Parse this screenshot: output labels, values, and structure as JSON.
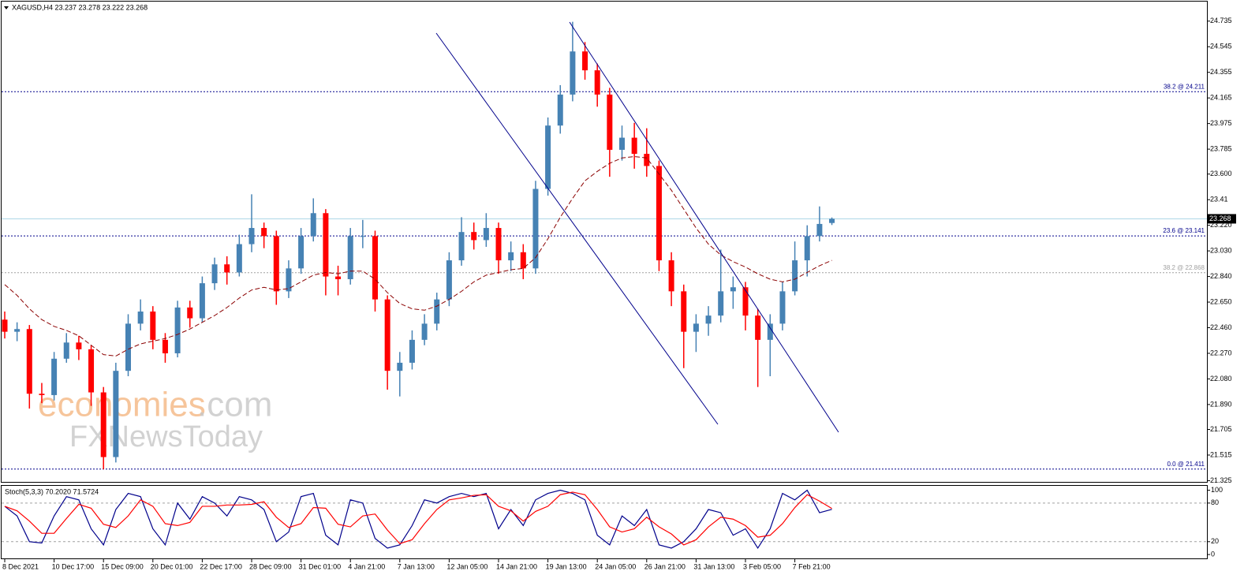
{
  "chart_data": [
    {
      "type": "candlestick",
      "title": "XAGUSD,H4  23.237 23.278 23.222 23.268",
      "up_color": "#4682b4",
      "down_color": "#ff0000",
      "open": [
        22.52,
        22.43,
        22.45,
        21.97,
        21.96,
        22.23,
        22.35,
        22.3,
        21.98,
        21.5,
        22.14,
        22.49,
        22.58,
        22.37,
        22.27,
        22.61,
        22.53,
        22.79,
        22.93,
        22.87,
        23.08,
        23.2,
        23.14,
        22.73,
        22.9,
        23.14,
        23.31,
        22.84,
        22.82,
        23.14,
        23.14,
        22.67,
        22.14,
        22.2,
        22.37,
        22.49,
        22.67,
        22.96,
        23.17,
        23.11,
        23.2,
        22.96,
        23.02,
        22.9,
        23.49,
        23.96,
        24.19,
        24.51,
        24.37,
        24.19,
        23.78,
        23.87,
        23.75,
        23.66,
        22.96,
        22.73,
        22.43,
        22.49,
        22.55,
        22.73,
        22.76,
        22.55,
        22.37,
        22.49,
        22.73,
        22.96,
        23.14,
        23.237
      ],
      "high": [
        22.58,
        22.5,
        22.48,
        22.05,
        22.28,
        22.42,
        22.4,
        22.33,
        22.02,
        22.2,
        22.56,
        22.67,
        22.62,
        22.42,
        22.66,
        22.66,
        22.84,
        22.98,
        22.99,
        23.15,
        23.45,
        23.24,
        23.18,
        22.96,
        23.2,
        23.42,
        23.34,
        22.92,
        23.2,
        23.26,
        23.18,
        22.7,
        22.28,
        22.44,
        22.56,
        22.72,
        23.02,
        23.28,
        23.24,
        23.31,
        23.24,
        23.1,
        23.08,
        23.55,
        24.02,
        24.26,
        24.73,
        24.58,
        24.42,
        24.24,
        23.96,
        23.98,
        23.94,
        23.7,
        23.02,
        22.78,
        22.56,
        22.62,
        23.04,
        22.84,
        22.8,
        22.6,
        22.56,
        22.8,
        23.1,
        23.22,
        23.36,
        23.278
      ],
      "low": [
        22.38,
        22.36,
        21.86,
        21.9,
        21.92,
        22.2,
        22.22,
        21.88,
        21.41,
        21.46,
        22.1,
        22.44,
        22.3,
        22.2,
        22.24,
        22.46,
        22.5,
        22.74,
        22.78,
        22.84,
        23.02,
        23.05,
        22.63,
        22.68,
        22.86,
        23.1,
        22.7,
        22.7,
        22.78,
        23.05,
        22.58,
        22.0,
        21.95,
        22.15,
        22.33,
        22.44,
        22.62,
        22.92,
        23.04,
        23.06,
        22.86,
        22.88,
        22.82,
        22.86,
        23.44,
        23.9,
        24.14,
        24.3,
        24.1,
        23.58,
        23.7,
        23.64,
        23.58,
        22.88,
        22.62,
        22.16,
        22.28,
        22.4,
        22.5,
        22.6,
        22.44,
        22.02,
        22.1,
        22.44,
        22.7,
        22.84,
        23.1,
        23.222
      ],
      "close": [
        22.43,
        22.45,
        21.97,
        21.96,
        22.23,
        22.35,
        22.3,
        21.98,
        21.5,
        22.14,
        22.49,
        22.58,
        22.37,
        22.27,
        22.61,
        22.53,
        22.79,
        22.93,
        22.87,
        23.08,
        23.2,
        23.14,
        22.73,
        22.9,
        23.14,
        23.31,
        22.84,
        22.82,
        23.14,
        23.14,
        22.67,
        22.14,
        22.2,
        22.37,
        22.49,
        22.67,
        22.96,
        23.17,
        23.11,
        23.2,
        22.96,
        23.02,
        22.9,
        23.49,
        23.96,
        24.19,
        24.51,
        24.37,
        24.19,
        23.78,
        23.87,
        23.75,
        23.66,
        22.96,
        22.73,
        22.43,
        22.49,
        22.55,
        22.73,
        22.76,
        22.55,
        22.37,
        22.49,
        22.73,
        22.96,
        23.14,
        23.23,
        23.268
      ],
      "moving_average": {
        "color": "#8b0000",
        "values": [
          22.78,
          22.7,
          22.6,
          22.52,
          22.47,
          22.44,
          22.4,
          22.33,
          22.26,
          22.25,
          22.3,
          22.34,
          22.36,
          22.38,
          22.41,
          22.45,
          22.5,
          22.55,
          22.61,
          22.68,
          22.74,
          22.76,
          22.74,
          22.75,
          22.8,
          22.85,
          22.87,
          22.86,
          22.88,
          22.88,
          22.82,
          22.72,
          22.64,
          22.6,
          22.59,
          22.62,
          22.67,
          22.73,
          22.8,
          22.85,
          22.87,
          22.89,
          22.9,
          22.98,
          23.12,
          23.28,
          23.42,
          23.55,
          23.62,
          23.68,
          23.72,
          23.73,
          23.72,
          23.6,
          23.48,
          23.34,
          23.2,
          23.08,
          23.0,
          22.95,
          22.91,
          22.86,
          22.82,
          22.8,
          22.82,
          22.87,
          22.92,
          22.96
        ]
      },
      "current_price": 23.268,
      "current_price_color": "#add8e6",
      "levels": [
        {
          "value": 24.211,
          "label": "38.2 @ 24.211",
          "color": "#00008b"
        },
        {
          "value": 23.141,
          "label": "23.6 @ 23.141",
          "color": "#00008b"
        },
        {
          "value": 22.868,
          "label": "38.2 @ 22.868",
          "color": "#a0a0a0"
        },
        {
          "value": 21.411,
          "label": "0.0 @ 21.411",
          "color": "#00008b"
        }
      ],
      "ylim": [
        21.31,
        24.88
      ],
      "yticks": [
        24.735,
        24.545,
        24.355,
        24.165,
        23.975,
        23.785,
        {
          "value": 23.6,
          "label": "23.600"
        },
        23.41,
        {
          "value": 23.22,
          "label": "23.220"
        },
        {
          "value": 23.03,
          "label": "23.030"
        },
        {
          "value": 22.84,
          "label": "22.840"
        },
        {
          "value": 22.65,
          "label": "22.650"
        },
        {
          "value": 22.46,
          "label": "22.460"
        },
        {
          "value": 22.27,
          "label": "22.270"
        },
        {
          "value": 22.08,
          "label": "22.080"
        },
        {
          "value": 21.89,
          "label": "21.890"
        },
        21.705,
        21.515,
        21.325
      ],
      "watermark": {
        "brand": "economies",
        "suffix": ".com",
        "line2": "FXNewsToday"
      }
    },
    {
      "type": "line",
      "title": "Stoch(5,3,3) 70.2020 71.5724",
      "categories": [
        "8 Dec 2021",
        null,
        null,
        null,
        "10 Dec 17:00",
        null,
        null,
        null,
        "15 Dec 09:00",
        null,
        null,
        null,
        "20 Dec 01:00",
        null,
        null,
        null,
        "22 Dec 17:00",
        null,
        null,
        null,
        "28 Dec 09:00",
        null,
        null,
        null,
        "31 Dec 01:00",
        null,
        null,
        null,
        "4 Jan 21:00",
        null,
        null,
        null,
        "7 Jan 13:00",
        null,
        null,
        null,
        "12 Jan 05:00",
        null,
        null,
        null,
        "14 Jan 21:00",
        null,
        null,
        null,
        "19 Jan 13:00",
        null,
        null,
        null,
        "24 Jan 05:00",
        null,
        null,
        null,
        "26 Jan 21:00",
        null,
        null,
        null,
        "31 Jan 13:00",
        null,
        null,
        null,
        "3 Feb 05:00",
        null,
        null,
        null,
        "7 Feb 21:00",
        null,
        null,
        null
      ],
      "series": [
        {
          "color": "#00008b",
          "values": [
            75,
            60,
            20,
            18,
            60,
            90,
            85,
            40,
            15,
            70,
            95,
            90,
            40,
            15,
            80,
            55,
            90,
            80,
            60,
            90,
            85,
            70,
            20,
            35,
            90,
            95,
            30,
            15,
            85,
            80,
            25,
            10,
            15,
            45,
            85,
            80,
            90,
            95,
            90,
            95,
            40,
            70,
            45,
            85,
            95,
            100,
            95,
            85,
            30,
            15,
            60,
            45,
            70,
            15,
            10,
            20,
            40,
            70,
            65,
            30,
            40,
            10,
            40,
            95,
            85,
            100,
            65,
            70.202
          ]
        },
        {
          "color": "#ff0000",
          "values": [
            75,
            68,
            52,
            33,
            33,
            56,
            78,
            72,
            47,
            42,
            60,
            85,
            75,
            48,
            45,
            50,
            75,
            75,
            77,
            77,
            78,
            82,
            58,
            42,
            48,
            73,
            72,
            47,
            43,
            60,
            63,
            38,
            17,
            23,
            48,
            70,
            85,
            88,
            92,
            93,
            75,
            68,
            52,
            67,
            75,
            93,
            97,
            93,
            70,
            43,
            35,
            40,
            58,
            43,
            32,
            15,
            23,
            43,
            58,
            55,
            45,
            27,
            30,
            48,
            73,
            93,
            83,
            71.5724
          ]
        }
      ],
      "levels": [
        80,
        20
      ],
      "ylim": [
        -6,
        108
      ],
      "yticks": [
        0,
        20,
        80,
        100
      ]
    }
  ]
}
